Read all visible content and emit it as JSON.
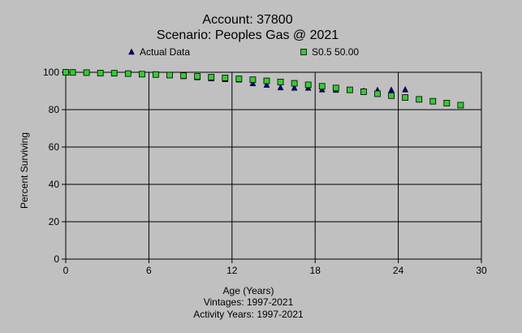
{
  "chart_data": {
    "type": "scatter",
    "title": "Account: 37800",
    "subtitle": "Scenario: Peoples Gas @ 2021",
    "xlabel": "Age (Years)",
    "ylabel": "Percent Surviving",
    "footnotes": [
      "Vintages: 1997-2021",
      "Activity Years: 1997-2021"
    ],
    "xlim": [
      0,
      30
    ],
    "ylim": [
      0,
      100
    ],
    "x_ticks": [
      0,
      6,
      12,
      18,
      24,
      30
    ],
    "y_ticks": [
      0,
      20,
      40,
      60,
      80,
      100
    ],
    "grid": true,
    "legend_position": "top",
    "series": [
      {
        "name": "Actual Data",
        "marker": "triangle",
        "color": "#000080",
        "x": [
          0,
          0.5,
          1.5,
          2.5,
          3.5,
          4.5,
          5.5,
          6.5,
          7.5,
          8.5,
          9.5,
          10.5,
          11.5,
          12.5,
          13.5,
          14.5,
          15.5,
          16.5,
          17.5,
          18.5,
          19.5,
          20.5,
          21.5,
          22.5,
          23.5,
          24.5
        ],
        "values": [
          100,
          99.9,
          99.8,
          99.6,
          99.4,
          99.2,
          98.9,
          98.6,
          98.3,
          97.8,
          97.2,
          96.6,
          96.2,
          96.0,
          94.0,
          93.2,
          91.8,
          91.6,
          91.6,
          90.7,
          90.5,
          90.3,
          90.0,
          90.4,
          90.5,
          90.7
        ]
      },
      {
        "name": "S0.5 50.00",
        "marker": "square",
        "color": "#33cc33",
        "x": [
          0,
          0.5,
          1.5,
          2.5,
          3.5,
          4.5,
          5.5,
          6.5,
          7.5,
          8.5,
          9.5,
          10.5,
          11.5,
          12.5,
          13.5,
          14.5,
          15.5,
          16.5,
          17.5,
          18.5,
          19.5,
          20.5,
          21.5,
          22.5,
          23.5,
          24.5,
          25.5,
          26.5,
          27.5,
          28.5
        ],
        "values": [
          100,
          99.9,
          99.8,
          99.6,
          99.5,
          99.3,
          99.0,
          98.8,
          98.5,
          98.2,
          97.8,
          97.4,
          97.0,
          96.5,
          96.0,
          95.4,
          94.8,
          94.1,
          93.3,
          92.5,
          91.6,
          90.6,
          89.6,
          88.5,
          87.5,
          86.5,
          85.5,
          84.5,
          83.5,
          82.4
        ]
      }
    ]
  }
}
